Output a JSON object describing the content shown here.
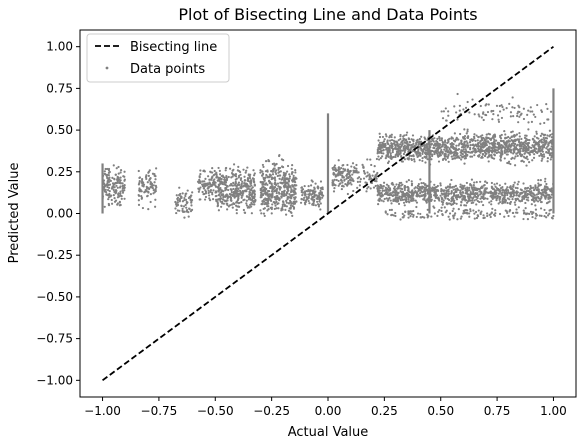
{
  "chart_data": {
    "type": "scatter",
    "title": "Plot of Bisecting Line and Data Points",
    "xlabel": "Actual Value",
    "ylabel": "Predicted Value",
    "xlim": [
      -1.1,
      1.1
    ],
    "ylim": [
      -1.1,
      1.1
    ],
    "x_ticks": [
      -1.0,
      -0.75,
      -0.5,
      -0.25,
      0.0,
      0.25,
      0.5,
      0.75,
      1.0
    ],
    "x_tick_labels": [
      "−1.00",
      "−0.75",
      "−0.50",
      "−0.25",
      "0.00",
      "0.25",
      "0.50",
      "0.75",
      "1.00"
    ],
    "y_ticks": [
      1.0,
      0.75,
      0.5,
      0.25,
      0.0,
      -0.25,
      -0.5,
      -0.75,
      -1.0
    ],
    "y_tick_labels": [
      "1.00",
      "0.75",
      "0.50",
      "0.25",
      "0.00",
      "−0.25",
      "−0.50",
      "−0.75",
      "−1.00"
    ],
    "grid": false,
    "legend_position": "top-left",
    "series": [
      {
        "name": "Bisecting line",
        "kind": "line",
        "style": "dashed",
        "color": "#000000",
        "x": [
          -1.0,
          1.0
        ],
        "y": [
          -1.0,
          1.0
        ]
      },
      {
        "name": "Data points",
        "kind": "scatter",
        "color": "#808080",
        "clusters": [
          {
            "x": [
              -1.0,
              -0.9
            ],
            "y": [
              0.0,
              0.32
            ],
            "n": 160
          },
          {
            "x": [
              -0.84,
              -0.76
            ],
            "y": [
              0.0,
              0.33
            ],
            "n": 90
          },
          {
            "x": [
              -0.68,
              -0.6
            ],
            "y": [
              -0.04,
              0.18
            ],
            "n": 70
          },
          {
            "x": [
              -0.58,
              -0.5
            ],
            "y": [
              0.05,
              0.3
            ],
            "n": 90
          },
          {
            "x": [
              -0.5,
              -0.32
            ],
            "y": [
              -0.05,
              0.32
            ],
            "n": 380
          },
          {
            "x": [
              -0.3,
              -0.14
            ],
            "y": [
              -0.08,
              0.38
            ],
            "n": 420
          },
          {
            "x": [
              -0.12,
              -0.02
            ],
            "y": [
              0.0,
              0.22
            ],
            "n": 120
          },
          {
            "x": [
              0.02,
              0.1
            ],
            "y": [
              0.1,
              0.35
            ],
            "n": 110
          },
          {
            "x": [
              0.1,
              0.22
            ],
            "y": [
              0.1,
              0.35
            ],
            "n": 80
          },
          {
            "x": [
              0.22,
              0.6
            ],
            "y": [
              0.28,
              0.5
            ],
            "n": 600
          },
          {
            "x": [
              0.22,
              0.6
            ],
            "y": [
              0.02,
              0.22
            ],
            "n": 500
          },
          {
            "x": [
              0.6,
              1.0
            ],
            "y": [
              0.28,
              0.52
            ],
            "n": 650
          },
          {
            "x": [
              0.6,
              1.0
            ],
            "y": [
              0.02,
              0.22
            ],
            "n": 480
          },
          {
            "x": [
              0.5,
              1.0
            ],
            "y": [
              0.5,
              0.72
            ],
            "n": 90
          },
          {
            "x": [
              0.25,
              1.0
            ],
            "y": [
              -0.05,
              0.05
            ],
            "n": 160
          }
        ],
        "vertical_strips": [
          {
            "x": -1.0,
            "y": [
              0.0,
              0.3
            ]
          },
          {
            "x": 0.0,
            "y": [
              0.0,
              0.6
            ]
          },
          {
            "x": 0.45,
            "y": [
              0.0,
              0.5
            ]
          },
          {
            "x": 1.0,
            "y": [
              0.0,
              0.75
            ]
          }
        ]
      }
    ]
  }
}
